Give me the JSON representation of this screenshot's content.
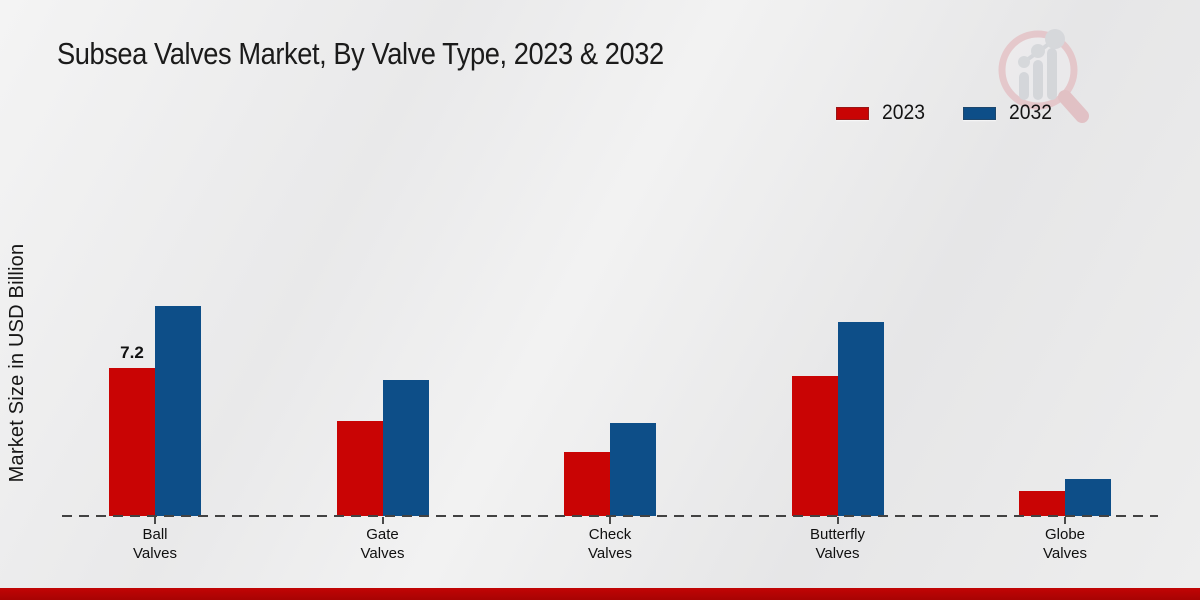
{
  "page": {
    "title": "Subsea Valves Market, By Valve Type, 2023 & 2032",
    "y_axis_label": "Market Size in USD Billion"
  },
  "legend": [
    {
      "label": "2023",
      "color": "#c90404"
    },
    {
      "label": "2032",
      "color": "#0d4e88"
    }
  ],
  "colors": {
    "series_2023": "#c90404",
    "series_2032": "#0d4e88",
    "bottom_strip": "#b50404",
    "baseline": "#424242",
    "text": "#161616",
    "background": "#ececec"
  },
  "watermark": {
    "name": "market-research-magnifier-logo"
  },
  "chart_data": {
    "type": "bar",
    "title": "Subsea Valves Market, By Valve Type, 2023 & 2032",
    "xlabel": "",
    "ylabel": "Market Size in USD Billion",
    "categories": [
      "Ball Valves",
      "Gate Valves",
      "Check Valves",
      "Butterfly Valves",
      "Globe Valves"
    ],
    "category_lines": [
      [
        "Ball",
        "Valves"
      ],
      [
        "Gate",
        "Valves"
      ],
      [
        "Check",
        "Valves"
      ],
      [
        "Butterfly",
        "Valves"
      ],
      [
        "Globe",
        "Valves"
      ]
    ],
    "series": [
      {
        "name": "2023",
        "color": "#c90404",
        "values": [
          7.2,
          4.6,
          3.1,
          6.8,
          1.2
        ]
      },
      {
        "name": "2032",
        "color": "#0d4e88",
        "values": [
          10.2,
          6.6,
          4.5,
          9.4,
          1.8
        ]
      }
    ],
    "data_labels": [
      {
        "series": "2023",
        "category": "Ball Valves",
        "text": "7.2"
      }
    ],
    "ylim": [
      0,
      10.5
    ],
    "grid": false,
    "y_axis_ticks_visible": false,
    "legend_position": "top-right",
    "baseline_style": "dashed"
  }
}
